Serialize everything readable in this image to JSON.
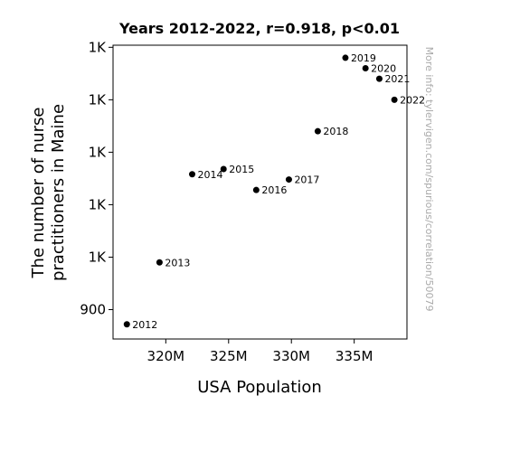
{
  "chart_data": {
    "type": "scatter",
    "title": "Years 2012-2022, r=0.918, p<0.01",
    "xlabel": "USA Population",
    "ylabel_lines": [
      "The number of nurse",
      "practitioners in Maine"
    ],
    "xlim": [
      315800000,
      339200000
    ],
    "ylim": [
      872,
      1152
    ],
    "x_ticks": [
      {
        "value": 320000000,
        "label": "320M"
      },
      {
        "value": 325000000,
        "label": "325M"
      },
      {
        "value": 330000000,
        "label": "330M"
      },
      {
        "value": 335000000,
        "label": "335M"
      }
    ],
    "y_ticks": [
      {
        "value": 900,
        "label": "900"
      },
      {
        "value": 950,
        "label": "1K"
      },
      {
        "value": 1000,
        "label": "1K"
      },
      {
        "value": 1050,
        "label": "1K"
      },
      {
        "value": 1100,
        "label": "1K"
      },
      {
        "value": 1150,
        "label": "1K"
      }
    ],
    "points": [
      {
        "label": "2012",
        "x": 316900000,
        "y": 886
      },
      {
        "label": "2013",
        "x": 319500000,
        "y": 945
      },
      {
        "label": "2014",
        "x": 322100000,
        "y": 1029
      },
      {
        "label": "2015",
        "x": 324600000,
        "y": 1034
      },
      {
        "label": "2016",
        "x": 327200000,
        "y": 1014
      },
      {
        "label": "2017",
        "x": 329800000,
        "y": 1024
      },
      {
        "label": "2018",
        "x": 332100000,
        "y": 1070
      },
      {
        "label": "2019",
        "x": 334300000,
        "y": 1140
      },
      {
        "label": "2020",
        "x": 335900000,
        "y": 1130
      },
      {
        "label": "2021",
        "x": 337000000,
        "y": 1120
      },
      {
        "label": "2022",
        "x": 338200000,
        "y": 1100
      }
    ],
    "marker_color": "#000000",
    "grid": false
  },
  "watermark": "More info: tylervigen.com/spurious/correlation/50079"
}
